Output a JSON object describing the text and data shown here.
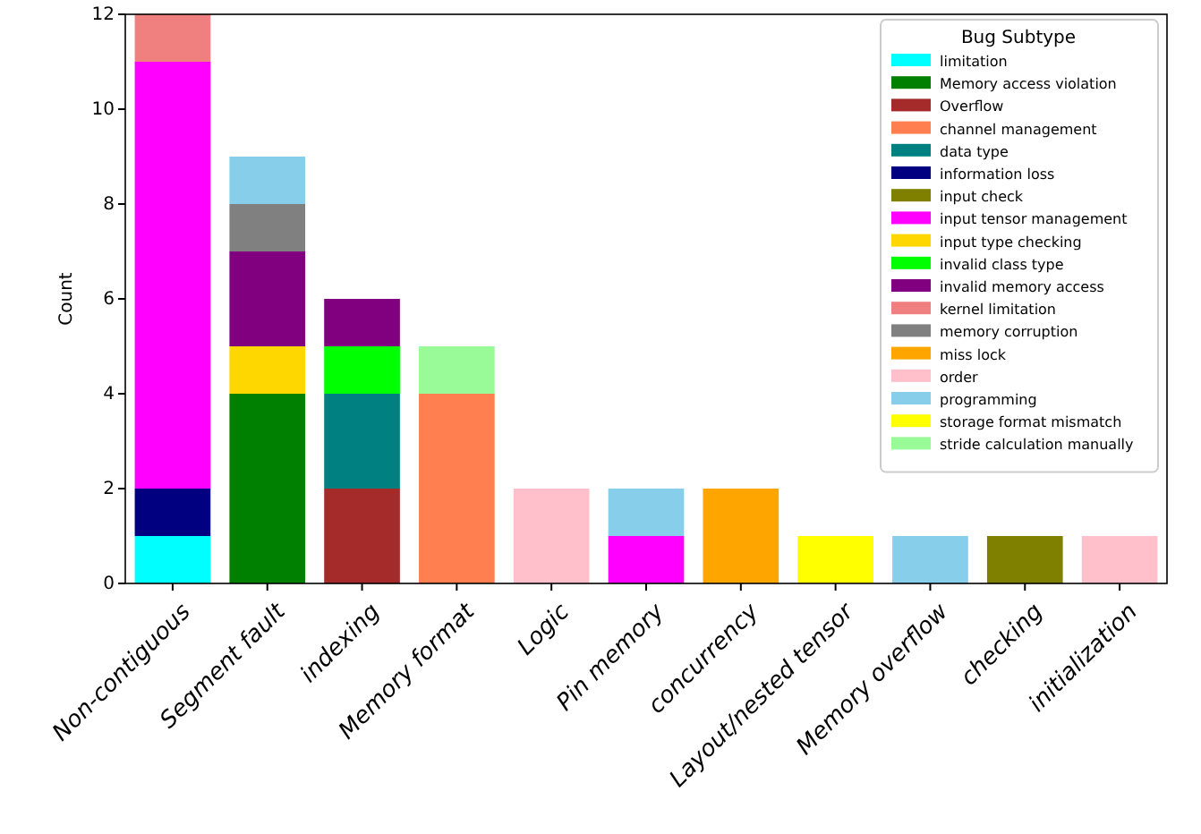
{
  "chart_data": {
    "type": "bar",
    "stacked": true,
    "ylabel": "Count",
    "legend_title": "Bug Subtype",
    "legend": "top right",
    "grid": false,
    "categories": [
      "Non-contiguous",
      "Segment fault",
      "indexing",
      "Memory format",
      "Logic",
      "Pin memory",
      "concurrency",
      "Layout/nested tensor",
      "Memory overflow",
      "checking",
      "initialization"
    ],
    "ylim": [
      0,
      12
    ],
    "yticks": [
      0,
      2,
      4,
      6,
      8,
      10,
      12
    ],
    "series": [
      {
        "name": "limitation",
        "color": "#00ffff",
        "values": [
          1,
          null,
          null,
          null,
          null,
          null,
          null,
          null,
          null,
          null,
          null
        ]
      },
      {
        "name": "Memory access violation",
        "color": "#008000",
        "values": [
          null,
          4,
          null,
          null,
          null,
          null,
          null,
          null,
          null,
          null,
          null
        ]
      },
      {
        "name": "Overflow",
        "color": "#a52a2a",
        "values": [
          null,
          null,
          2,
          null,
          null,
          null,
          null,
          null,
          null,
          null,
          null
        ]
      },
      {
        "name": "channel management",
        "color": "#ff7f50",
        "values": [
          null,
          null,
          null,
          4,
          null,
          null,
          null,
          null,
          null,
          null,
          null
        ]
      },
      {
        "name": "data type",
        "color": "#008080",
        "values": [
          null,
          null,
          2,
          null,
          null,
          null,
          null,
          null,
          null,
          null,
          null
        ]
      },
      {
        "name": "information loss",
        "color": "#000080",
        "values": [
          1,
          null,
          null,
          null,
          null,
          null,
          null,
          null,
          null,
          null,
          null
        ]
      },
      {
        "name": "input check",
        "color": "#808000",
        "values": [
          null,
          null,
          null,
          null,
          null,
          null,
          null,
          null,
          null,
          1,
          null
        ]
      },
      {
        "name": "input tensor management",
        "color": "#ff00ff",
        "values": [
          9,
          null,
          null,
          null,
          null,
          1,
          null,
          null,
          null,
          null,
          null
        ]
      },
      {
        "name": "input type checking",
        "color": "#ffd700",
        "values": [
          null,
          1,
          null,
          null,
          null,
          null,
          null,
          null,
          null,
          null,
          null
        ]
      },
      {
        "name": "invalid class type",
        "color": "#00ff00",
        "values": [
          null,
          null,
          1,
          null,
          null,
          null,
          null,
          null,
          null,
          null,
          null
        ]
      },
      {
        "name": "invalid memory access",
        "color": "#800080",
        "values": [
          null,
          2,
          1,
          null,
          null,
          null,
          null,
          null,
          null,
          null,
          null
        ]
      },
      {
        "name": "kernel limitation",
        "color": "#f08080",
        "values": [
          1,
          null,
          null,
          null,
          null,
          null,
          null,
          null,
          null,
          null,
          null
        ]
      },
      {
        "name": "memory corruption",
        "color": "#808080",
        "values": [
          null,
          1,
          null,
          null,
          null,
          null,
          null,
          null,
          null,
          null,
          null
        ]
      },
      {
        "name": "miss lock",
        "color": "#ffa500",
        "values": [
          null,
          null,
          null,
          null,
          null,
          null,
          2,
          null,
          null,
          null,
          null
        ]
      },
      {
        "name": "order",
        "color": "#ffc0cb",
        "values": [
          null,
          null,
          null,
          null,
          2,
          null,
          null,
          null,
          null,
          null,
          1
        ]
      },
      {
        "name": "programming",
        "color": "#87ceeb",
        "values": [
          null,
          1,
          null,
          null,
          null,
          1,
          null,
          null,
          1,
          null,
          null
        ]
      },
      {
        "name": "storage format mismatch",
        "color": "#ffff00",
        "values": [
          null,
          null,
          null,
          null,
          null,
          null,
          null,
          1,
          null,
          null,
          null
        ]
      },
      {
        "name": "stride calculation manually",
        "color": "#98fb98",
        "values": [
          null,
          null,
          null,
          1,
          null,
          null,
          null,
          null,
          null,
          null,
          null
        ]
      }
    ]
  }
}
